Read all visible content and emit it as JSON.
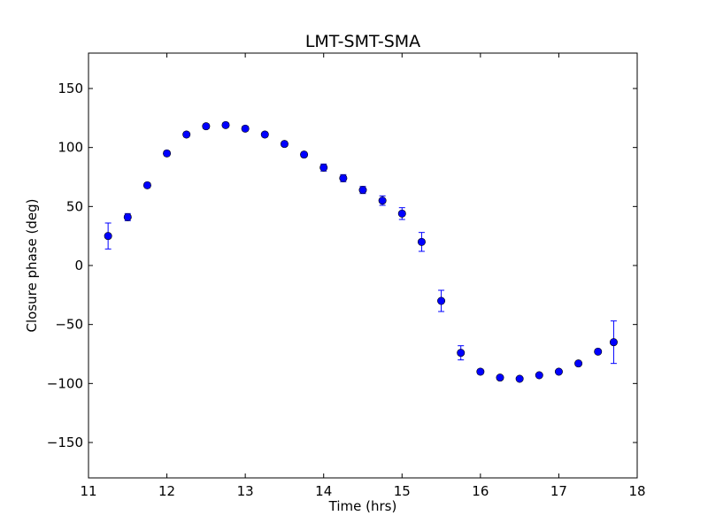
{
  "chart_data": {
    "type": "scatter",
    "title": "LMT-SMT-SMA",
    "xlabel": "Time (hrs)",
    "ylabel": "Closure phase (deg)",
    "xlim": [
      11,
      18
    ],
    "ylim": [
      -180,
      180
    ],
    "xticks": [
      11,
      12,
      13,
      14,
      15,
      16,
      17,
      18
    ],
    "yticks": [
      -150,
      -100,
      -50,
      0,
      50,
      100,
      150
    ],
    "ytick_labels": [
      "−150",
      "−100",
      "−50",
      "0",
      "50",
      "100",
      "150"
    ],
    "grid": false,
    "marker_color": "#0000ff",
    "errorbar_color": "#0000ff",
    "series": [
      {
        "x": [
          11.25,
          11.5,
          11.75,
          12.0,
          12.25,
          12.5,
          12.75,
          13.0,
          13.25,
          13.5,
          13.75,
          14.0,
          14.25,
          14.5,
          14.75,
          15.0,
          15.25,
          15.5,
          15.75,
          16.0,
          16.25,
          16.5,
          16.75,
          17.0,
          17.25,
          17.5,
          17.7
        ],
        "y": [
          25,
          41,
          68,
          95,
          111,
          118,
          119,
          116,
          111,
          103,
          94,
          83,
          74,
          64,
          55,
          44,
          20,
          -30,
          -74,
          -90,
          -95,
          -96,
          -93,
          -90,
          -83,
          -73,
          -65
        ],
        "yerr": [
          11,
          3,
          2,
          2,
          2,
          2,
          2,
          2,
          2,
          2,
          2,
          3,
          3,
          3,
          4,
          5,
          8,
          9,
          6,
          2,
          1,
          1,
          1,
          1,
          1,
          1,
          18
        ]
      }
    ]
  }
}
